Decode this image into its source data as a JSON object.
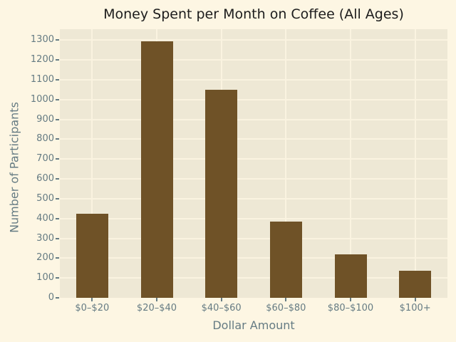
{
  "chart_data": {
    "type": "bar",
    "title": "Money Spent per Month on Coffee (All Ages)",
    "xlabel": "Dollar Amount",
    "ylabel": "Number of Participants",
    "categories": [
      "$0–$20",
      "$20–$40",
      "$40–$60",
      "$60–$80",
      "$80–$100",
      "$100+"
    ],
    "values": [
      425,
      1295,
      1050,
      385,
      220,
      135
    ],
    "yticks": [
      0,
      100,
      200,
      300,
      400,
      500,
      600,
      700,
      800,
      900,
      1000,
      1100,
      1200,
      1300
    ],
    "ylim": [
      0,
      1355
    ],
    "grid": true,
    "legend": false,
    "colors": {
      "figure_background": "#FDF6E3",
      "plot_background": "#EEE8D5",
      "gridline": "#FAF3E0",
      "bar": "#6F5227",
      "tick_label": "#657B83",
      "axis_label": "#657B83",
      "title": "#1C1C1C"
    }
  }
}
